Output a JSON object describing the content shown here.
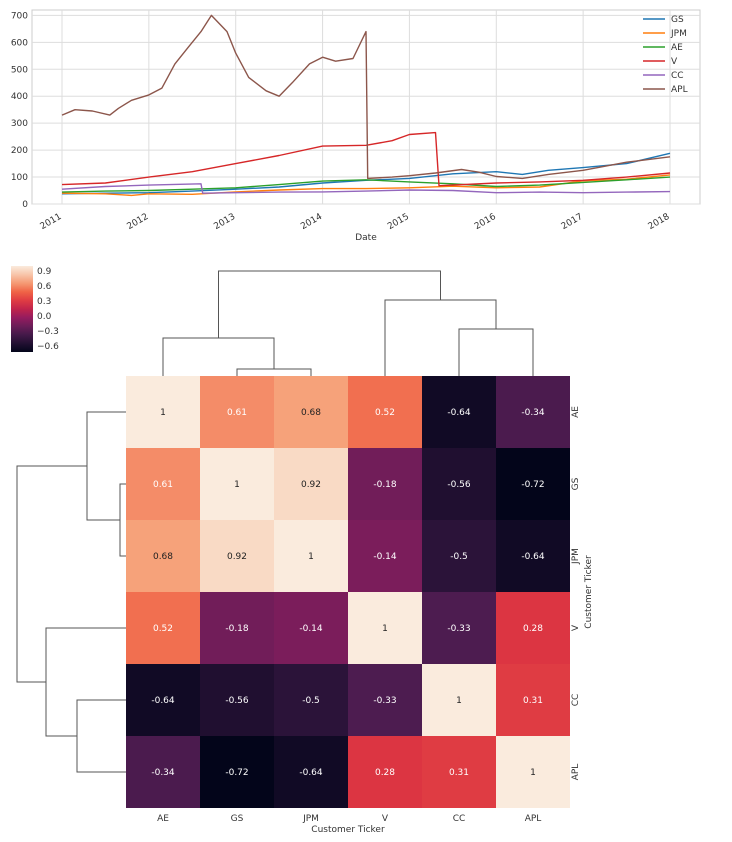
{
  "chart_data": [
    {
      "type": "line",
      "xlabel": "Date",
      "ylabel": "",
      "xticks": [
        "2011",
        "2012",
        "2013",
        "2014",
        "2015",
        "2016",
        "2017",
        "2018"
      ],
      "yticks": [
        "0",
        "100",
        "200",
        "300",
        "400",
        "500",
        "600",
        "700"
      ],
      "xlim": [
        2011.0,
        2018.0
      ],
      "ylim": [
        0,
        720
      ],
      "grid": true,
      "legend_position": "top-right",
      "series": [
        {
          "name": "GS",
          "color": "#1f77b4",
          "points": [
            [
              2011.0,
              38
            ],
            [
              2011.5,
              40
            ],
            [
              2012.0,
              42
            ],
            [
              2012.5,
              48
            ],
            [
              2013.0,
              55
            ],
            [
              2013.5,
              63
            ],
            [
              2014.0,
              78
            ],
            [
              2014.5,
              88
            ],
            [
              2015.0,
              95
            ],
            [
              2015.5,
              112
            ],
            [
              2016.0,
              120
            ],
            [
              2016.3,
              110
            ],
            [
              2016.6,
              125
            ],
            [
              2017.0,
              135
            ],
            [
              2017.5,
              150
            ],
            [
              2018.0,
              188
            ]
          ]
        },
        {
          "name": "JPM",
          "color": "#ff7f0e",
          "points": [
            [
              2011.0,
              40
            ],
            [
              2011.5,
              38
            ],
            [
              2011.8,
              32
            ],
            [
              2012.0,
              38
            ],
            [
              2012.5,
              36
            ],
            [
              2013.0,
              45
            ],
            [
              2013.5,
              52
            ],
            [
              2014.0,
              57
            ],
            [
              2014.5,
              57
            ],
            [
              2015.0,
              60
            ],
            [
              2015.5,
              66
            ],
            [
              2016.0,
              60
            ],
            [
              2016.5,
              63
            ],
            [
              2017.0,
              86
            ],
            [
              2017.5,
              92
            ],
            [
              2018.0,
              108
            ]
          ]
        },
        {
          "name": "AE",
          "color": "#2ca02c",
          "points": [
            [
              2011.0,
              44
            ],
            [
              2011.5,
              48
            ],
            [
              2012.0,
              50
            ],
            [
              2012.5,
              55
            ],
            [
              2013.0,
              60
            ],
            [
              2013.5,
              72
            ],
            [
              2014.0,
              85
            ],
            [
              2014.5,
              90
            ],
            [
              2015.0,
              82
            ],
            [
              2015.5,
              75
            ],
            [
              2016.0,
              65
            ],
            [
              2016.5,
              70
            ],
            [
              2017.0,
              80
            ],
            [
              2017.5,
              90
            ],
            [
              2018.0,
              100
            ]
          ]
        },
        {
          "name": "V",
          "color": "#d62728",
          "points": [
            [
              2011.0,
              72
            ],
            [
              2011.5,
              78
            ],
            [
              2012.0,
              100
            ],
            [
              2012.5,
              120
            ],
            [
              2013.0,
              150
            ],
            [
              2013.5,
              180
            ],
            [
              2014.0,
              215
            ],
            [
              2014.5,
              218
            ],
            [
              2014.8,
              235
            ],
            [
              2015.0,
              258
            ],
            [
              2015.3,
              265
            ],
            [
              2015.34,
              68
            ],
            [
              2015.5,
              70
            ],
            [
              2016.0,
              78
            ],
            [
              2016.5,
              82
            ],
            [
              2017.0,
              88
            ],
            [
              2017.5,
              100
            ],
            [
              2018.0,
              115
            ]
          ]
        },
        {
          "name": "CC",
          "color": "#9467bd",
          "points": [
            [
              2011.0,
              55
            ],
            [
              2011.5,
              65
            ],
            [
              2012.0,
              70
            ],
            [
              2012.6,
              75
            ],
            [
              2012.62,
              40
            ],
            [
              2013.0,
              42
            ],
            [
              2013.5,
              44
            ],
            [
              2014.0,
              45
            ],
            [
              2014.5,
              48
            ],
            [
              2015.0,
              52
            ],
            [
              2015.5,
              50
            ],
            [
              2016.0,
              42
            ],
            [
              2016.5,
              44
            ],
            [
              2017.0,
              42
            ],
            [
              2017.5,
              44
            ],
            [
              2018.0,
              46
            ]
          ]
        },
        {
          "name": "APL",
          "color": "#8c564b",
          "points": [
            [
              2011.0,
              330
            ],
            [
              2011.15,
              350
            ],
            [
              2011.35,
              345
            ],
            [
              2011.55,
              330
            ],
            [
              2011.65,
              355
            ],
            [
              2011.8,
              385
            ],
            [
              2012.0,
              405
            ],
            [
              2012.15,
              430
            ],
            [
              2012.3,
              520
            ],
            [
              2012.45,
              580
            ],
            [
              2012.6,
              640
            ],
            [
              2012.72,
              700
            ],
            [
              2012.9,
              640
            ],
            [
              2013.0,
              560
            ],
            [
              2013.15,
              470
            ],
            [
              2013.35,
              420
            ],
            [
              2013.5,
              400
            ],
            [
              2013.65,
              450
            ],
            [
              2013.85,
              520
            ],
            [
              2014.0,
              545
            ],
            [
              2014.15,
              530
            ],
            [
              2014.35,
              540
            ],
            [
              2014.5,
              640
            ],
            [
              2014.52,
              95
            ],
            [
              2014.8,
              100
            ],
            [
              2015.0,
              105
            ],
            [
              2015.3,
              115
            ],
            [
              2015.6,
              128
            ],
            [
              2015.8,
              118
            ],
            [
              2016.0,
              102
            ],
            [
              2016.3,
              95
            ],
            [
              2016.6,
              110
            ],
            [
              2017.0,
              125
            ],
            [
              2017.5,
              155
            ],
            [
              2018.0,
              175
            ]
          ]
        }
      ]
    },
    {
      "type": "heatmap",
      "subtype": "clustermap",
      "xlabel": "Customer Ticker",
      "ylabel": "Customer Ticker",
      "row_labels": [
        "AE",
        "GS",
        "JPM",
        "V",
        "CC",
        "APL"
      ],
      "col_labels": [
        "AE",
        "GS",
        "JPM",
        "V",
        "CC",
        "APL"
      ],
      "values": [
        [
          1,
          0.61,
          0.68,
          0.52,
          -0.64,
          -0.34
        ],
        [
          0.61,
          1,
          0.92,
          -0.18,
          -0.56,
          -0.72
        ],
        [
          0.68,
          0.92,
          1,
          -0.14,
          -0.5,
          -0.64
        ],
        [
          0.52,
          -0.18,
          -0.14,
          1,
          -0.33,
          0.28
        ],
        [
          -0.64,
          -0.56,
          -0.5,
          -0.33,
          1,
          0.31
        ],
        [
          -0.34,
          -0.72,
          -0.64,
          0.28,
          0.31,
          1
        ]
      ],
      "colorbar_ticks": [
        "0.9",
        "0.6",
        "0.3",
        "0.0",
        "−0.3",
        "−0.6"
      ],
      "colorbar_range": [
        -0.72,
        1.0
      ],
      "colormap": "rocket",
      "dendrograms": "row-left and column-top"
    }
  ]
}
